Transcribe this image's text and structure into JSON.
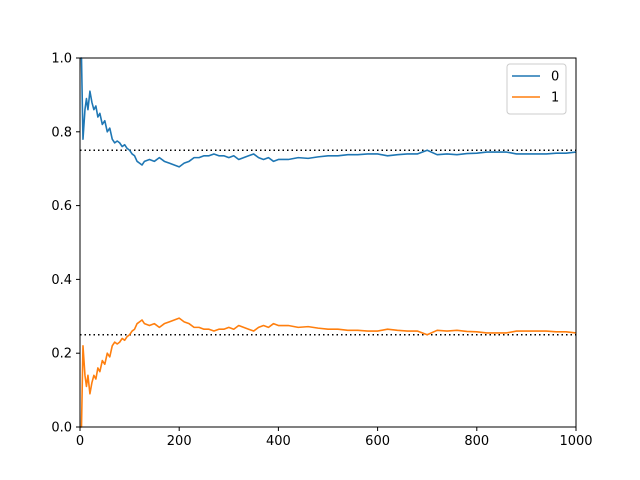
{
  "chart_data": {
    "type": "line",
    "title": "",
    "xlabel": "",
    "ylabel": "",
    "xlim": [
      0,
      1000
    ],
    "ylim": [
      0.0,
      1.0
    ],
    "grid": false,
    "legend_position": "top-right",
    "x_ticks": [
      "0",
      "200",
      "400",
      "600",
      "800",
      "1000"
    ],
    "y_ticks": [
      "0.0",
      "0.2",
      "0.4",
      "0.6",
      "0.8",
      "1.0"
    ],
    "reference_lines": [
      {
        "y": 0.75,
        "style": "dotted",
        "color": "#000000"
      },
      {
        "y": 0.25,
        "style": "dotted",
        "color": "#000000"
      }
    ],
    "series": [
      {
        "name": "0",
        "color": "#1f77b4",
        "x": [
          1,
          3,
          6,
          8,
          10,
          13,
          16,
          20,
          24,
          28,
          32,
          36,
          40,
          45,
          50,
          55,
          60,
          65,
          70,
          75,
          80,
          85,
          90,
          95,
          100,
          105,
          110,
          115,
          120,
          125,
          130,
          140,
          150,
          160,
          170,
          180,
          190,
          200,
          210,
          220,
          230,
          240,
          250,
          260,
          270,
          280,
          290,
          300,
          310,
          320,
          330,
          340,
          350,
          360,
          370,
          380,
          390,
          400,
          420,
          440,
          460,
          480,
          500,
          520,
          540,
          560,
          580,
          600,
          620,
          640,
          660,
          680,
          700,
          720,
          740,
          760,
          780,
          800,
          820,
          840,
          860,
          880,
          900,
          920,
          940,
          960,
          980,
          1000
        ],
        "y": [
          1.0,
          1.0,
          0.78,
          0.82,
          0.86,
          0.89,
          0.86,
          0.91,
          0.88,
          0.86,
          0.87,
          0.84,
          0.85,
          0.82,
          0.83,
          0.8,
          0.81,
          0.78,
          0.77,
          0.775,
          0.77,
          0.76,
          0.765,
          0.755,
          0.75,
          0.74,
          0.735,
          0.72,
          0.715,
          0.71,
          0.72,
          0.725,
          0.72,
          0.73,
          0.72,
          0.715,
          0.71,
          0.705,
          0.715,
          0.72,
          0.73,
          0.73,
          0.735,
          0.735,
          0.74,
          0.735,
          0.735,
          0.73,
          0.735,
          0.725,
          0.73,
          0.735,
          0.74,
          0.73,
          0.725,
          0.73,
          0.72,
          0.725,
          0.725,
          0.73,
          0.728,
          0.732,
          0.735,
          0.735,
          0.738,
          0.738,
          0.74,
          0.74,
          0.735,
          0.738,
          0.74,
          0.74,
          0.75,
          0.738,
          0.74,
          0.738,
          0.741,
          0.742,
          0.745,
          0.745,
          0.745,
          0.74,
          0.74,
          0.74,
          0.74,
          0.742,
          0.742,
          0.745
        ]
      },
      {
        "name": "1",
        "color": "#ff7f0e",
        "x": [
          1,
          3,
          6,
          8,
          10,
          13,
          16,
          20,
          24,
          28,
          32,
          36,
          40,
          45,
          50,
          55,
          60,
          65,
          70,
          75,
          80,
          85,
          90,
          95,
          100,
          105,
          110,
          115,
          120,
          125,
          130,
          140,
          150,
          160,
          170,
          180,
          190,
          200,
          210,
          220,
          230,
          240,
          250,
          260,
          270,
          280,
          290,
          300,
          310,
          320,
          330,
          340,
          350,
          360,
          370,
          380,
          390,
          400,
          420,
          440,
          460,
          480,
          500,
          520,
          540,
          560,
          580,
          600,
          620,
          640,
          660,
          680,
          700,
          720,
          740,
          760,
          780,
          800,
          820,
          840,
          860,
          880,
          900,
          920,
          940,
          960,
          980,
          1000
        ],
        "y": [
          0.0,
          0.0,
          0.22,
          0.18,
          0.14,
          0.11,
          0.14,
          0.09,
          0.12,
          0.14,
          0.13,
          0.16,
          0.15,
          0.18,
          0.17,
          0.2,
          0.19,
          0.22,
          0.23,
          0.225,
          0.23,
          0.24,
          0.235,
          0.245,
          0.25,
          0.26,
          0.265,
          0.28,
          0.285,
          0.29,
          0.28,
          0.275,
          0.28,
          0.27,
          0.28,
          0.285,
          0.29,
          0.295,
          0.285,
          0.28,
          0.27,
          0.27,
          0.265,
          0.265,
          0.26,
          0.265,
          0.265,
          0.27,
          0.265,
          0.275,
          0.27,
          0.265,
          0.26,
          0.27,
          0.275,
          0.27,
          0.28,
          0.275,
          0.275,
          0.27,
          0.272,
          0.268,
          0.265,
          0.265,
          0.262,
          0.262,
          0.26,
          0.26,
          0.265,
          0.262,
          0.26,
          0.26,
          0.25,
          0.262,
          0.26,
          0.262,
          0.259,
          0.258,
          0.255,
          0.255,
          0.255,
          0.26,
          0.26,
          0.26,
          0.26,
          0.258,
          0.258,
          0.255
        ]
      }
    ]
  }
}
